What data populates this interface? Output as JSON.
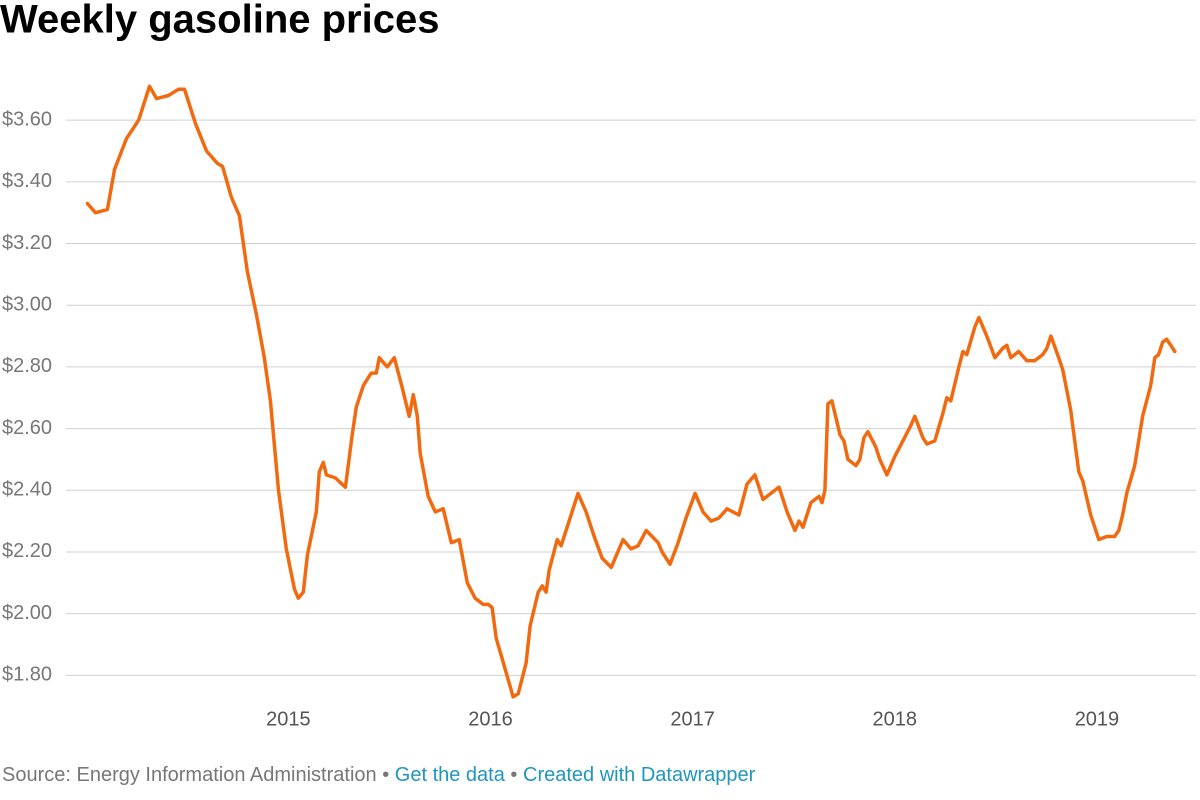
{
  "chart_data": {
    "type": "line",
    "title": "Weekly gasoline prices",
    "xlim": [
      2013.9,
      2019.49
    ],
    "xticks": [
      2015,
      2016,
      2017,
      2018,
      2019
    ],
    "ylim": [
      1.72,
      3.74
    ],
    "yticks": [
      {
        "value": 1.8,
        "label": "$1.80"
      },
      {
        "value": 2.0,
        "label": "$2.00"
      },
      {
        "value": 2.2,
        "label": "$2.20"
      },
      {
        "value": 2.4,
        "label": "$2.40"
      },
      {
        "value": 2.6,
        "label": "$2.60"
      },
      {
        "value": 2.8,
        "label": "$2.80"
      },
      {
        "value": 3.0,
        "label": "$3.00"
      },
      {
        "value": 3.2,
        "label": "$3.20"
      },
      {
        "value": 3.4,
        "label": "$3.40"
      },
      {
        "value": 3.6,
        "label": "$3.60"
      }
    ],
    "grid": true,
    "x": [
      2014.006,
      2014.046,
      2014.105,
      2014.14,
      2014.199,
      2014.259,
      2014.313,
      2014.348,
      2014.407,
      2014.456,
      2014.486,
      2014.54,
      2014.595,
      2014.649,
      2014.674,
      2014.718,
      2014.758,
      2014.797,
      2014.842,
      2014.881,
      2014.911,
      2014.951,
      2014.99,
      2015.03,
      2015.049,
      2015.074,
      2015.094,
      2015.138,
      2015.153,
      2015.173,
      2015.188,
      2015.232,
      2015.282,
      2015.316,
      2015.336,
      2015.371,
      2015.41,
      2015.435,
      2015.45,
      2015.489,
      2015.524,
      2015.564,
      2015.598,
      2015.618,
      2015.638,
      2015.652,
      2015.692,
      2015.727,
      2015.766,
      2015.806,
      2015.845,
      2015.885,
      2015.924,
      2015.964,
      2015.989,
      2016.008,
      2016.028,
      2016.068,
      2016.112,
      2016.137,
      2016.176,
      2016.196,
      2016.236,
      2016.256,
      2016.275,
      2016.29,
      2016.33,
      2016.349,
      2016.389,
      2016.433,
      2016.473,
      2016.513,
      2016.552,
      2016.597,
      2016.656,
      2016.695,
      2016.73,
      2016.77,
      2016.829,
      2016.849,
      2016.888,
      2016.928,
      2016.967,
      2017.012,
      2017.051,
      2017.091,
      2017.13,
      2017.17,
      2017.229,
      2017.269,
      2017.308,
      2017.348,
      2017.407,
      2017.427,
      2017.467,
      2017.506,
      2017.526,
      2017.546,
      2017.585,
      2017.625,
      2017.64,
      2017.654,
      2017.669,
      2017.689,
      2017.729,
      2017.748,
      2017.768,
      2017.808,
      2017.827,
      2017.847,
      2017.867,
      2017.906,
      2017.926,
      2017.961,
      2018.0,
      2018.04,
      2018.079,
      2018.099,
      2018.139,
      2018.159,
      2018.198,
      2018.238,
      2018.257,
      2018.277,
      2018.317,
      2018.337,
      2018.356,
      2018.396,
      2018.416,
      2018.455,
      2018.495,
      2018.534,
      2018.554,
      2018.574,
      2018.613,
      2018.653,
      2018.692,
      2018.732,
      2018.752,
      2018.772,
      2018.811,
      2018.831,
      2018.87,
      2018.91,
      2018.93,
      2018.969,
      2019.009,
      2019.048,
      2019.088,
      2019.108,
      2019.127,
      2019.147,
      2019.187,
      2019.226,
      2019.266,
      2019.286,
      2019.305,
      2019.325,
      2019.345,
      2019.385
    ],
    "series": [
      {
        "color": "#f26a10",
        "values": [
          3.33,
          3.3,
          3.31,
          3.44,
          3.54,
          3.6,
          3.71,
          3.67,
          3.68,
          3.7,
          3.7,
          3.59,
          3.5,
          3.46,
          3.45,
          3.35,
          3.29,
          3.11,
          2.97,
          2.83,
          2.69,
          2.4,
          2.21,
          2.08,
          2.05,
          2.07,
          2.19,
          2.33,
          2.46,
          2.49,
          2.45,
          2.44,
          2.41,
          2.58,
          2.67,
          2.74,
          2.78,
          2.78,
          2.83,
          2.8,
          2.83,
          2.73,
          2.64,
          2.71,
          2.64,
          2.52,
          2.38,
          2.33,
          2.34,
          2.23,
          2.24,
          2.1,
          2.05,
          2.03,
          2.03,
          2.02,
          1.92,
          1.83,
          1.73,
          1.74,
          1.84,
          1.96,
          2.07,
          2.09,
          2.07,
          2.14,
          2.24,
          2.22,
          2.3,
          2.39,
          2.33,
          2.25,
          2.18,
          2.15,
          2.24,
          2.21,
          2.22,
          2.27,
          2.23,
          2.2,
          2.16,
          2.23,
          2.31,
          2.39,
          2.33,
          2.3,
          2.31,
          2.34,
          2.32,
          2.42,
          2.45,
          2.37,
          2.4,
          2.41,
          2.33,
          2.27,
          2.3,
          2.28,
          2.36,
          2.38,
          2.36,
          2.4,
          2.68,
          2.69,
          2.58,
          2.56,
          2.5,
          2.48,
          2.5,
          2.57,
          2.59,
          2.54,
          2.5,
          2.45,
          2.51,
          2.56,
          2.61,
          2.64,
          2.57,
          2.55,
          2.56,
          2.65,
          2.7,
          2.69,
          2.8,
          2.85,
          2.84,
          2.93,
          2.96,
          2.9,
          2.83,
          2.86,
          2.87,
          2.83,
          2.85,
          2.82,
          2.82,
          2.84,
          2.86,
          2.9,
          2.83,
          2.79,
          2.66,
          2.46,
          2.43,
          2.32,
          2.24,
          2.25,
          2.25,
          2.27,
          2.32,
          2.39,
          2.48,
          2.64,
          2.74,
          2.83,
          2.84,
          2.88,
          2.89,
          2.85
        ]
      }
    ],
    "footer": {
      "source": "Source: Energy Information Administration",
      "separator": "•",
      "links": [
        "Get the data",
        "Created with Datawrapper"
      ]
    }
  }
}
